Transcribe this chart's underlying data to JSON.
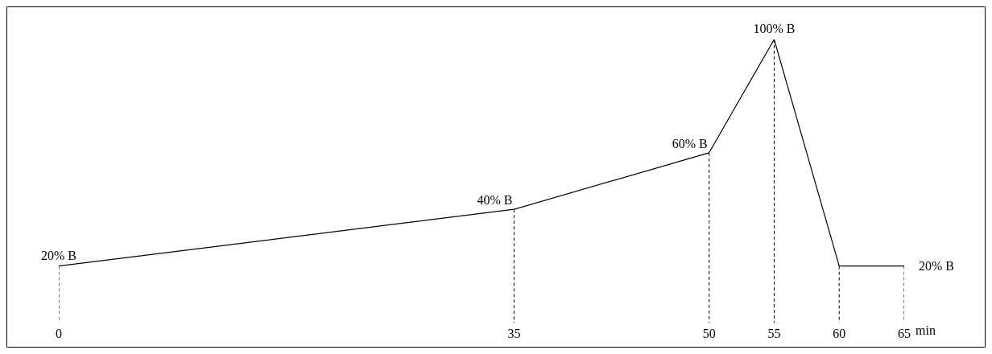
{
  "chart_data": {
    "type": "line",
    "xlabel": "min",
    "x": [
      0,
      35,
      50,
      55,
      60,
      65
    ],
    "series": [
      {
        "color": "#000000",
        "values": [
          20,
          40,
          60,
          100,
          20,
          20
        ],
        "value_labels": [
          "20% B",
          "40% B",
          "60% B",
          "100% B",
          null,
          "20% B"
        ]
      }
    ],
    "xlim": [
      0,
      65
    ],
    "xticks": [
      0,
      35,
      50,
      55,
      60,
      65
    ],
    "line_style": "solid"
  }
}
